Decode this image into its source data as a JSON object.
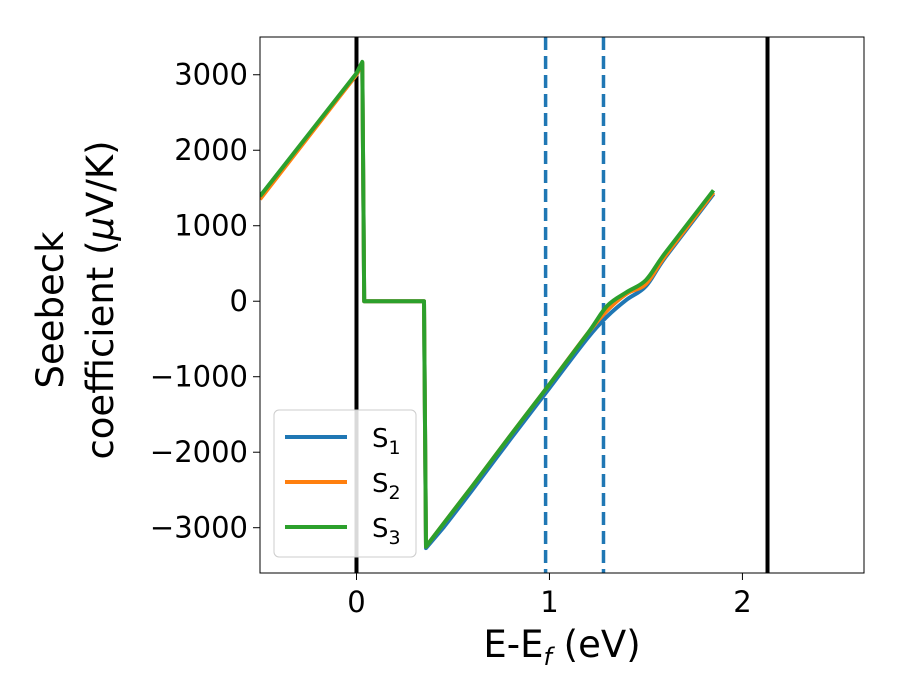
{
  "chart_data": {
    "type": "line",
    "xlabel": "E-E",
    "xlabel_sub": "f",
    "xlabel_unit": " (eV)",
    "ylabel_line1": "Seebeck",
    "ylabel_line2_prefix": "coefficient  (",
    "ylabel_mu": "μ",
    "ylabel_line2_suffix": "V/K)",
    "xlim": [
      -0.5,
      2.63
    ],
    "ylim": [
      -3600,
      3500
    ],
    "xticks": [
      0,
      1,
      2
    ],
    "xtick_labels": [
      "0",
      "1",
      "2"
    ],
    "yticks": [
      3000,
      2000,
      1000,
      0,
      -1000,
      -2000,
      -3000
    ],
    "ytick_labels": [
      "3000",
      "2000",
      "1000",
      "0",
      "−1000",
      "−2000",
      "−3000"
    ],
    "grid": false,
    "legend_position": "lower left",
    "vlines": [
      {
        "x": 0.0,
        "style": "solid",
        "color": "#000000"
      },
      {
        "x": 2.13,
        "style": "solid",
        "color": "#000000"
      },
      {
        "x": 0.98,
        "style": "dashed",
        "color": "#1f77b4"
      },
      {
        "x": 1.28,
        "style": "dashed",
        "color": "#1f77b4"
      }
    ],
    "series": [
      {
        "name": "S",
        "sub": "1",
        "color": "#1f77b4",
        "x": [
          -0.5,
          0.0,
          0.03,
          0.04,
          0.35,
          0.36,
          0.45,
          0.6,
          0.8,
          1.0,
          1.2,
          1.3,
          1.4,
          1.5,
          1.6,
          1.85
        ],
        "y": [
          1390,
          3000,
          3150,
          0,
          0,
          -3270,
          -3000,
          -2500,
          -1820,
          -1150,
          -480,
          -200,
          20,
          200,
          580,
          1420
        ]
      },
      {
        "name": "S",
        "sub": "2",
        "color": "#ff7f0e",
        "x": [
          -0.5,
          0.0,
          0.03,
          0.04,
          0.35,
          0.36,
          0.45,
          0.6,
          0.8,
          1.0,
          1.2,
          1.3,
          1.4,
          1.5,
          1.6,
          1.85
        ],
        "y": [
          1350,
          3000,
          3160,
          0,
          0,
          -3250,
          -2950,
          -2450,
          -1770,
          -1100,
          -420,
          -120,
          100,
          230,
          600,
          1440
        ]
      },
      {
        "name": "S",
        "sub": "3",
        "color": "#2ca02c",
        "x": [
          -0.5,
          0.0,
          0.03,
          0.04,
          0.35,
          0.36,
          0.45,
          0.6,
          0.8,
          1.0,
          1.2,
          1.3,
          1.4,
          1.5,
          1.6,
          1.85
        ],
        "y": [
          1390,
          3020,
          3170,
          0,
          0,
          -3250,
          -2950,
          -2450,
          -1770,
          -1100,
          -420,
          -60,
          120,
          280,
          640,
          1470
        ]
      }
    ],
    "colors": {
      "axis": "#000000",
      "background": "#ffffff"
    }
  }
}
